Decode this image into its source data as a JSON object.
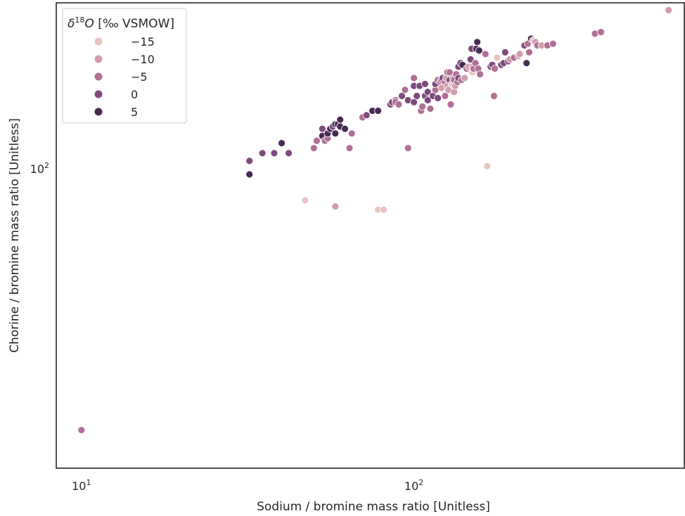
{
  "chart_data": {
    "type": "scatter",
    "xlabel": "Sodium / bromine mass ratio [Unitless]",
    "ylabel": "Chorine / bromine mass ratio [Unitless]",
    "xscale": "log",
    "yscale": "log",
    "xlim": [
      8.4,
      650
    ],
    "ylim": [
      33,
      185
    ],
    "x_ticks": [
      {
        "base": "10",
        "exp": "1",
        "value": 10
      },
      {
        "base": "10",
        "exp": "2",
        "value": 100
      }
    ],
    "y_ticks": [
      {
        "base": "10",
        "exp": "2",
        "value": 100
      }
    ],
    "grid": false,
    "legend": {
      "title_prefix": "δ",
      "title_sup": "18",
      "title_var": "O",
      "title_rest": " [‰ VSMOW]",
      "placement": "top-left",
      "entries": [
        {
          "label": "−15",
          "hue": -15,
          "color": "#e8c3c2"
        },
        {
          "label": "−10",
          "hue": -10,
          "color": "#d09cab"
        },
        {
          "label": "−5",
          "hue": -5,
          "color": "#b06f96"
        },
        {
          "label": "0",
          "hue": 0,
          "color": "#7e4a7b"
        },
        {
          "label": "5",
          "hue": 5,
          "color": "#482a55"
        }
      ]
    },
    "points": [
      [
        10,
        38,
        -4
      ],
      [
        32,
        103,
        0
      ],
      [
        32,
        98,
        5
      ],
      [
        35,
        106,
        2
      ],
      [
        38,
        106,
        1
      ],
      [
        40,
        110,
        4
      ],
      [
        42,
        106,
        1
      ],
      [
        47,
        89,
        -13
      ],
      [
        50,
        108,
        -3
      ],
      [
        51,
        111,
        -6
      ],
      [
        53,
        113,
        3
      ],
      [
        53,
        116,
        1
      ],
      [
        54,
        111,
        -6
      ],
      [
        55,
        112,
        -4
      ],
      [
        55,
        114,
        3
      ],
      [
        56,
        116,
        4
      ],
      [
        57,
        117,
        2
      ],
      [
        58,
        114,
        3
      ],
      [
        58,
        118,
        5
      ],
      [
        59,
        118,
        3
      ],
      [
        60,
        117,
        4
      ],
      [
        60,
        120,
        5
      ],
      [
        62,
        116,
        4
      ],
      [
        58,
        87,
        -8
      ],
      [
        64,
        108,
        -5
      ],
      [
        65,
        114,
        -4
      ],
      [
        70,
        121,
        -5
      ],
      [
        72,
        122,
        1
      ],
      [
        75,
        124,
        4
      ],
      [
        78,
        124,
        3
      ],
      [
        78,
        86,
        -14
      ],
      [
        81,
        86,
        -15
      ],
      [
        85,
        127,
        1
      ],
      [
        86,
        128,
        0
      ],
      [
        88,
        129,
        -6
      ],
      [
        88,
        128,
        -4
      ],
      [
        90,
        127,
        -3
      ],
      [
        92,
        131,
        1
      ],
      [
        94,
        134,
        -3
      ],
      [
        96,
        129,
        1
      ],
      [
        96,
        108,
        -4
      ],
      [
        100,
        128,
        0
      ],
      [
        100,
        136,
        2
      ],
      [
        100,
        140,
        -4
      ],
      [
        102,
        131,
        0
      ],
      [
        104,
        136,
        0
      ],
      [
        105,
        124,
        -4
      ],
      [
        106,
        126,
        -6
      ],
      [
        108,
        131,
        1
      ],
      [
        108,
        137,
        -2
      ],
      [
        110,
        133,
        -2
      ],
      [
        110,
        129,
        -2
      ],
      [
        112,
        125,
        -7
      ],
      [
        114,
        131,
        0
      ],
      [
        116,
        134,
        -7
      ],
      [
        116,
        137,
        -1
      ],
      [
        118,
        139,
        -4
      ],
      [
        118,
        130,
        0
      ],
      [
        120,
        138,
        -5
      ],
      [
        121,
        139,
        -7
      ],
      [
        121,
        135,
        -12
      ],
      [
        122,
        140,
        -2
      ],
      [
        124,
        131,
        -7
      ],
      [
        124,
        138,
        -3
      ],
      [
        125,
        140,
        -9
      ],
      [
        126,
        143,
        -4
      ],
      [
        126,
        136,
        -9
      ],
      [
        127,
        134,
        -11
      ],
      [
        128,
        139,
        -2
      ],
      [
        128,
        143,
        -7
      ],
      [
        129,
        127,
        -6
      ],
      [
        130,
        137,
        -13
      ],
      [
        131,
        140,
        -11
      ],
      [
        132,
        139,
        -3
      ],
      [
        132,
        133,
        -8
      ],
      [
        133,
        136,
        -10
      ],
      [
        134,
        142,
        -7
      ],
      [
        135,
        138,
        -6
      ],
      [
        136,
        140,
        0
      ],
      [
        136,
        146,
        -2
      ],
      [
        138,
        148,
        1
      ],
      [
        139,
        139,
        -6
      ],
      [
        140,
        147,
        4
      ],
      [
        142,
        140,
        -8
      ],
      [
        144,
        145,
        -3
      ],
      [
        146,
        146,
        -8
      ],
      [
        148,
        150,
        -1
      ],
      [
        149,
        156,
        2
      ],
      [
        150,
        143,
        -13
      ],
      [
        150,
        146,
        -10
      ],
      [
        151,
        145,
        -5
      ],
      [
        153,
        148,
        -6
      ],
      [
        154,
        156,
        5
      ],
      [
        155,
        160,
        3
      ],
      [
        156,
        145,
        -3
      ],
      [
        157,
        155,
        5
      ],
      [
        158,
        142,
        -4
      ],
      [
        164,
        153,
        -5
      ],
      [
        166,
        101,
        -13
      ],
      [
        170,
        146,
        -2
      ],
      [
        172,
        147,
        -1
      ],
      [
        174,
        131,
        -6
      ],
      [
        175,
        145,
        -6
      ],
      [
        178,
        151,
        -13
      ],
      [
        183,
        147,
        0
      ],
      [
        186,
        148,
        -2
      ],
      [
        188,
        154,
        0
      ],
      [
        192,
        149,
        0
      ],
      [
        194,
        150,
        -8
      ],
      [
        200,
        151,
        -3
      ],
      [
        206,
        152,
        -9
      ],
      [
        208,
        153,
        -12
      ],
      [
        215,
        158,
        2
      ],
      [
        218,
        148,
        4
      ],
      [
        220,
        159,
        -4
      ],
      [
        222,
        154,
        -5
      ],
      [
        225,
        162,
        5
      ],
      [
        228,
        161,
        -13
      ],
      [
        232,
        160,
        -11
      ],
      [
        235,
        158,
        -7
      ],
      [
        242,
        158,
        -11
      ],
      [
        252,
        158,
        -5
      ],
      [
        262,
        159,
        -7
      ],
      [
        350,
        165,
        -6
      ],
      [
        365,
        166,
        -7
      ],
      [
        583,
        180,
        -10
      ]
    ]
  }
}
